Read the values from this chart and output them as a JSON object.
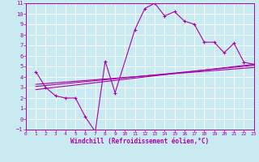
{
  "background_color": "#c8eaf0",
  "grid_color": "#ffffff",
  "line_color": "#aa00aa",
  "marker": "+",
  "xlabel": "Windchill (Refroidissement éolien,°C)",
  "xlim": [
    0,
    23
  ],
  "ylim": [
    -1,
    11
  ],
  "xticks": [
    0,
    1,
    2,
    3,
    4,
    5,
    6,
    7,
    8,
    9,
    10,
    11,
    12,
    13,
    14,
    15,
    16,
    17,
    18,
    19,
    20,
    21,
    22,
    23
  ],
  "yticks": [
    -1,
    0,
    1,
    2,
    3,
    4,
    5,
    6,
    7,
    8,
    9,
    10,
    11
  ],
  "series1_x": [
    1,
    2,
    3,
    4,
    5,
    6,
    7,
    8,
    9,
    11,
    12,
    13,
    14,
    15,
    16,
    17,
    18,
    19,
    20,
    21,
    22,
    23
  ],
  "series1_y": [
    4.5,
    3.0,
    2.2,
    2.0,
    2.0,
    0.2,
    -1.2,
    5.5,
    2.5,
    8.5,
    10.5,
    11.0,
    9.8,
    10.2,
    9.3,
    9.0,
    7.3,
    7.3,
    6.3,
    7.2,
    5.4,
    5.2
  ],
  "series2_x": [
    1,
    23
  ],
  "series2_y": [
    2.8,
    5.2
  ],
  "series3_x": [
    1,
    23
  ],
  "series3_y": [
    3.1,
    5.1
  ],
  "series4_x": [
    1,
    23
  ],
  "series4_y": [
    3.3,
    4.9
  ]
}
